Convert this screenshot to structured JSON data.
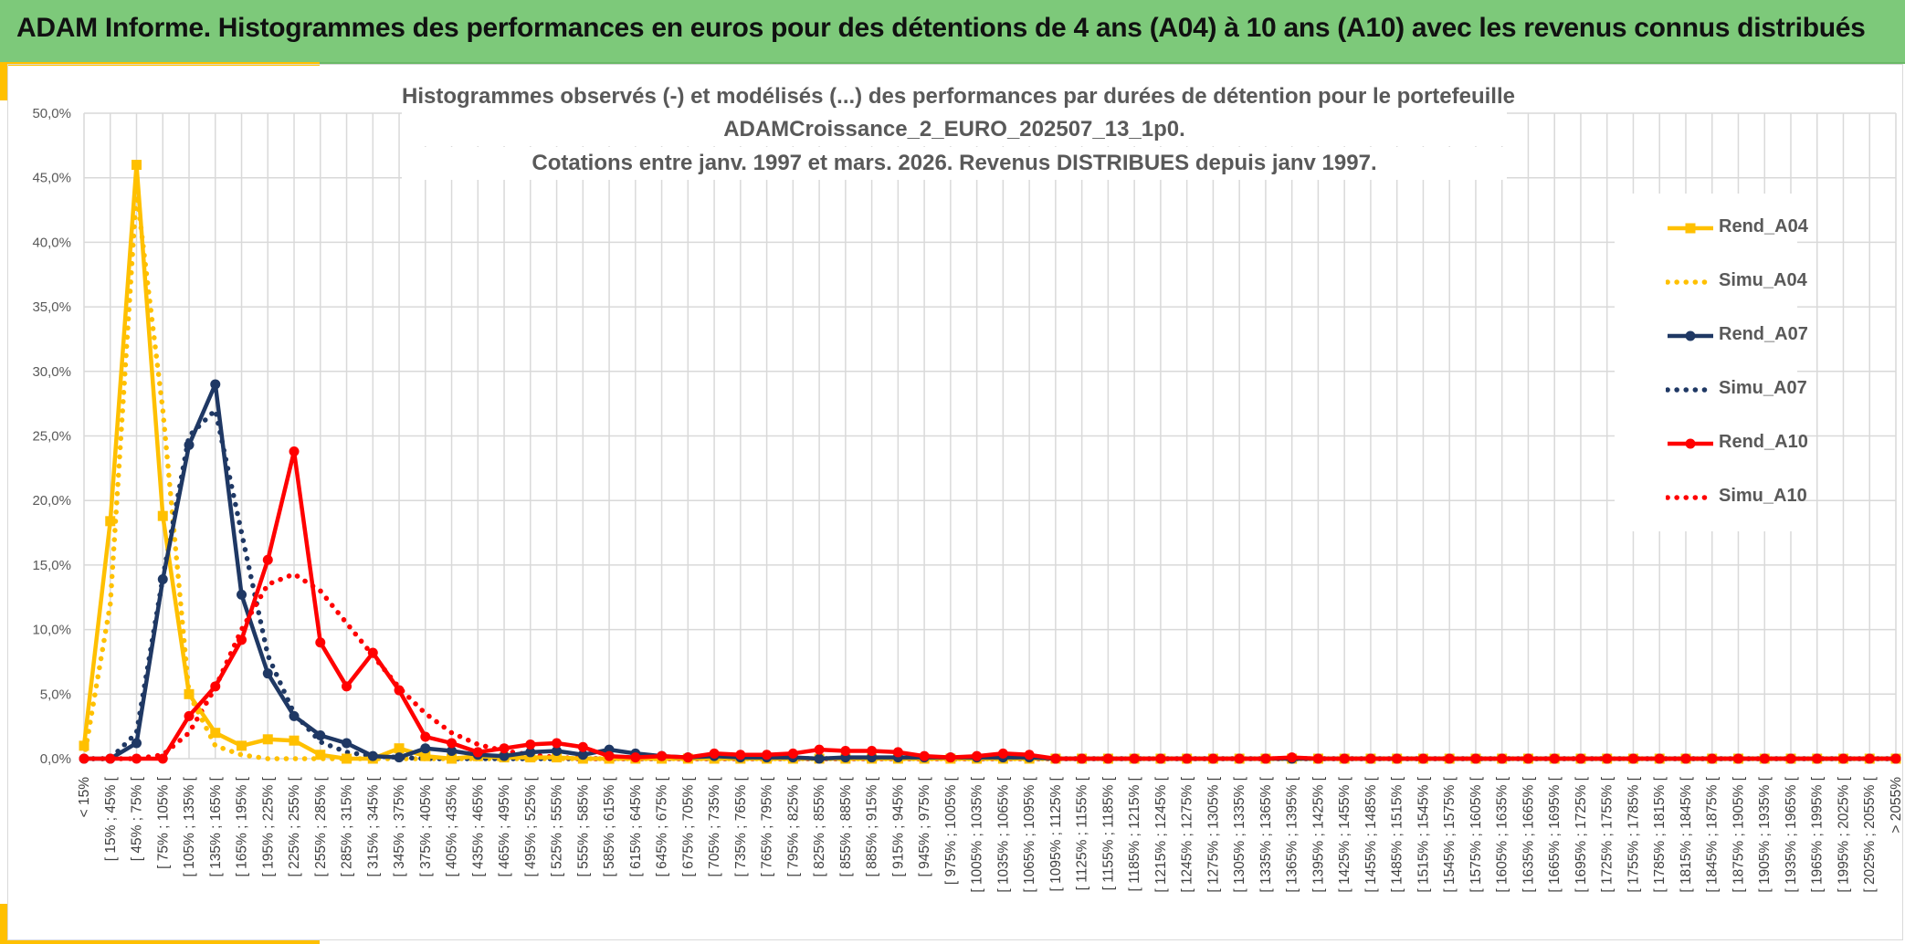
{
  "banner": {
    "title": "ADAM Informe. Histogrammes des performances en euros pour des détentions de 4 ans (A04) à 10 ans (A10) avec les revenus connus distribués"
  },
  "colors": {
    "banner": "#7dc97a",
    "accent": "#ffc000",
    "A04": "#ffc000",
    "A07": "#1f3864",
    "A10": "#ff0000"
  },
  "chart_data": {
    "type": "line",
    "title": [
      "Histogrammes observés (-) et modélisés (...) des performances par durées de détention pour le portefeuille",
      "ADAMCroissance_2_EURO_202507_13_1p0.",
      "Cotations entre janv. 1997 et mars. 2026. Revenus DISTRIBUES depuis janv 1997."
    ],
    "ylim": [
      0,
      50
    ],
    "yticks": [
      "0,0%",
      "5,0%",
      "10,0%",
      "15,0%",
      "20,0%",
      "25,0%",
      "30,0%",
      "35,0%",
      "40,0%",
      "45,0%",
      "50,0%"
    ],
    "grid": true,
    "legend_position": "right",
    "categories": [
      "< 15%",
      "[ 15% ; 45% [",
      "[ 45% ; 75% [",
      "[ 75% ; 105% [",
      "[ 105% ; 135% [",
      "[ 135% ; 165% [",
      "[ 165% ; 195% [",
      "[ 195% ; 225% [",
      "[ 225% ; 255% [",
      "[ 255% ; 285% [",
      "[ 285% ; 315% [",
      "[ 315% ; 345% [",
      "[ 345% ; 375% [",
      "[ 375% ; 405% [",
      "[ 405% ; 435% [",
      "[ 435% ; 465% [",
      "[ 465% ; 495% [",
      "[ 495% ; 525% [",
      "[ 525% ; 555% [",
      "[ 555% ; 585% [",
      "[ 585% ; 615% [",
      "[ 615% ; 645% [",
      "[ 645% ; 675% [",
      "[ 675% ; 705% [",
      "[ 705% ; 735% [",
      "[ 735% ; 765% [",
      "[ 765% ; 795% [",
      "[ 795% ; 825% [",
      "[ 825% ; 855% [",
      "[ 855% ; 885% [",
      "[ 885% ; 915% [",
      "[ 915% ; 945% [",
      "[ 945% ; 975% [",
      "[ 975% ; 1005% [",
      "[ 1005% ; 1035% [",
      "[ 1035% ; 1065% [",
      "[ 1065% ; 1095% [",
      "[ 1095% ; 1125% [",
      "[ 1125% ; 1155% [",
      "[ 1155% ; 1185% [",
      "[ 1185% ; 1215% [",
      "[ 1215% ; 1245% [",
      "[ 1245% ; 1275% [",
      "[ 1275% ; 1305% [",
      "[ 1305% ; 1335% [",
      "[ 1335% ; 1365% [",
      "[ 1365% ; 1395% [",
      "[ 1395% ; 1425% [",
      "[ 1425% ; 1455% [",
      "[ 1455% ; 1485% [",
      "[ 1485% ; 1515% [",
      "[ 1515% ; 1545% [",
      "[ 1545% ; 1575% [",
      "[ 1575% ; 1605% [",
      "[ 1605% ; 1635% [",
      "[ 1635% ; 1665% [",
      "[ 1665% ; 1695% [",
      "[ 1695% ; 1725% [",
      "[ 1725% ; 1755% [",
      "[ 1755% ; 1785% [",
      "[ 1785% ; 1815% [",
      "[ 1815% ; 1845% [",
      "[ 1845% ; 1875% [",
      "[ 1875% ; 1905% [",
      "[ 1905% ; 1935% [",
      "[ 1935% ; 1965% [",
      "[ 1965% ; 1995% [",
      "[ 1995% ; 2025% [",
      "[ 2025% ; 2055% [",
      "> 2055%"
    ],
    "series": [
      {
        "name": "Rend_A04",
        "color": "#ffc000",
        "style": "solid",
        "marker": "square",
        "values": [
          1.0,
          18.4,
          46.0,
          18.8,
          5.0,
          2.0,
          1.0,
          1.5,
          1.4,
          0.3,
          0.0,
          0.0,
          0.8,
          0.2,
          0.0,
          0.2,
          0.1,
          0.1,
          0.1,
          0.0,
          0.0,
          0.0,
          0.0,
          0.0,
          0.0,
          0.0,
          0.0,
          0.0,
          0.0,
          0.0,
          0.0,
          0.0,
          0.0,
          0.0,
          0.0,
          0.0,
          0.0,
          0.0,
          0.0,
          0.0,
          0.0,
          0.0,
          0.0,
          0.0,
          0.0,
          0.0,
          0.0,
          0.0,
          0.0,
          0.0,
          0.0,
          0.0,
          0.0,
          0.0,
          0.0,
          0.0,
          0.0,
          0.0,
          0.0,
          0.0,
          0.0,
          0.0,
          0.0,
          0.0,
          0.0,
          0.0,
          0.0,
          0.0,
          0.0,
          0.0
        ]
      },
      {
        "name": "Simu_A04",
        "color": "#ffc000",
        "style": "dotted",
        "values": [
          0.0,
          12.0,
          44.0,
          27.0,
          5.0,
          1.0,
          0.3,
          0.0,
          0.0,
          0.0,
          0.0,
          0.0,
          0.0,
          0.0,
          0.0,
          0.0,
          0.0,
          0.0,
          0.0,
          0.0,
          0.0,
          0.0,
          0.0,
          0.0,
          0.0,
          0.0,
          0.0,
          0.0,
          0.0,
          0.0,
          0.0,
          0.0,
          0.0,
          0.0,
          0.0,
          0.0,
          0.0,
          0.0,
          0.0,
          0.0,
          0.0,
          0.0,
          0.0,
          0.0,
          0.0,
          0.0,
          0.0,
          0.0,
          0.0,
          0.0,
          0.0,
          0.0,
          0.0,
          0.0,
          0.0,
          0.0,
          0.0,
          0.0,
          0.0,
          0.0,
          0.0,
          0.0,
          0.0,
          0.0,
          0.0,
          0.0,
          0.0,
          0.0,
          0.0,
          0.0
        ]
      },
      {
        "name": "Rend_A07",
        "color": "#1f3864",
        "style": "solid",
        "marker": "circle",
        "values": [
          0.0,
          0.0,
          1.2,
          13.9,
          24.3,
          29.0,
          12.7,
          6.6,
          3.3,
          1.8,
          1.2,
          0.2,
          0.1,
          0.8,
          0.6,
          0.3,
          0.2,
          0.5,
          0.6,
          0.3,
          0.7,
          0.4,
          0.2,
          0.1,
          0.2,
          0.1,
          0.1,
          0.1,
          0.0,
          0.1,
          0.1,
          0.1,
          0.1,
          0.1,
          0.1,
          0.1,
          0.1,
          0.0,
          0.0,
          0.0,
          0.0,
          0.0,
          0.0,
          0.0,
          0.0,
          0.0,
          0.0,
          0.0,
          0.0,
          0.0,
          0.0,
          0.0,
          0.0,
          0.0,
          0.0,
          0.0,
          0.0,
          0.0,
          0.0,
          0.0,
          0.0,
          0.0,
          0.0,
          0.0,
          0.0,
          0.0,
          0.0,
          0.0,
          0.0,
          0.0
        ]
      },
      {
        "name": "Simu_A07",
        "color": "#1f3864",
        "style": "dotted",
        "values": [
          0.0,
          0.0,
          2.0,
          14.0,
          25.0,
          27.0,
          17.5,
          8.0,
          3.5,
          1.3,
          0.5,
          0.2,
          0.1,
          0.0,
          0.0,
          0.0,
          0.0,
          0.0,
          0.0,
          0.0,
          0.0,
          0.0,
          0.0,
          0.0,
          0.0,
          0.0,
          0.0,
          0.0,
          0.0,
          0.0,
          0.0,
          0.0,
          0.0,
          0.0,
          0.0,
          0.0,
          0.0,
          0.0,
          0.0,
          0.0,
          0.0,
          0.0,
          0.0,
          0.0,
          0.0,
          0.0,
          0.0,
          0.0,
          0.0,
          0.0,
          0.0,
          0.0,
          0.0,
          0.0,
          0.0,
          0.0,
          0.0,
          0.0,
          0.0,
          0.0,
          0.0,
          0.0,
          0.0,
          0.0,
          0.0,
          0.0,
          0.0,
          0.0,
          0.0,
          0.0
        ]
      },
      {
        "name": "Rend_A10",
        "color": "#ff0000",
        "style": "solid",
        "marker": "circle",
        "values": [
          0.0,
          0.0,
          0.0,
          0.0,
          3.3,
          5.6,
          9.2,
          15.4,
          23.8,
          9.0,
          5.6,
          8.2,
          5.3,
          1.7,
          1.2,
          0.5,
          0.8,
          1.1,
          1.2,
          0.9,
          0.2,
          0.1,
          0.2,
          0.1,
          0.4,
          0.3,
          0.3,
          0.4,
          0.7,
          0.6,
          0.6,
          0.5,
          0.2,
          0.1,
          0.2,
          0.4,
          0.3,
          0.0,
          0.0,
          0.0,
          0.0,
          0.0,
          0.0,
          0.0,
          0.0,
          0.0,
          0.1,
          0.0,
          0.0,
          0.0,
          0.0,
          0.0,
          0.0,
          0.0,
          0.0,
          0.0,
          0.0,
          0.0,
          0.0,
          0.0,
          0.0,
          0.0,
          0.0,
          0.0,
          0.0,
          0.0,
          0.0,
          0.0,
          0.0,
          0.0
        ]
      },
      {
        "name": "Simu_A10",
        "color": "#ff0000",
        "style": "dotted",
        "values": [
          0.0,
          0.0,
          0.0,
          0.3,
          2.0,
          5.5,
          10.0,
          13.5,
          14.3,
          13.0,
          10.5,
          8.0,
          5.5,
          3.5,
          2.0,
          1.1,
          0.6,
          0.3,
          0.1,
          0.0,
          0.0,
          0.0,
          0.0,
          0.0,
          0.0,
          0.0,
          0.0,
          0.0,
          0.0,
          0.0,
          0.0,
          0.0,
          0.0,
          0.0,
          0.0,
          0.0,
          0.0,
          0.0,
          0.0,
          0.0,
          0.0,
          0.0,
          0.0,
          0.0,
          0.0,
          0.0,
          0.0,
          0.0,
          0.0,
          0.0,
          0.0,
          0.0,
          0.0,
          0.0,
          0.0,
          0.0,
          0.0,
          0.0,
          0.0,
          0.0,
          0.0,
          0.0,
          0.0,
          0.0,
          0.0,
          0.0,
          0.0,
          0.0,
          0.0,
          0.0
        ]
      }
    ]
  }
}
